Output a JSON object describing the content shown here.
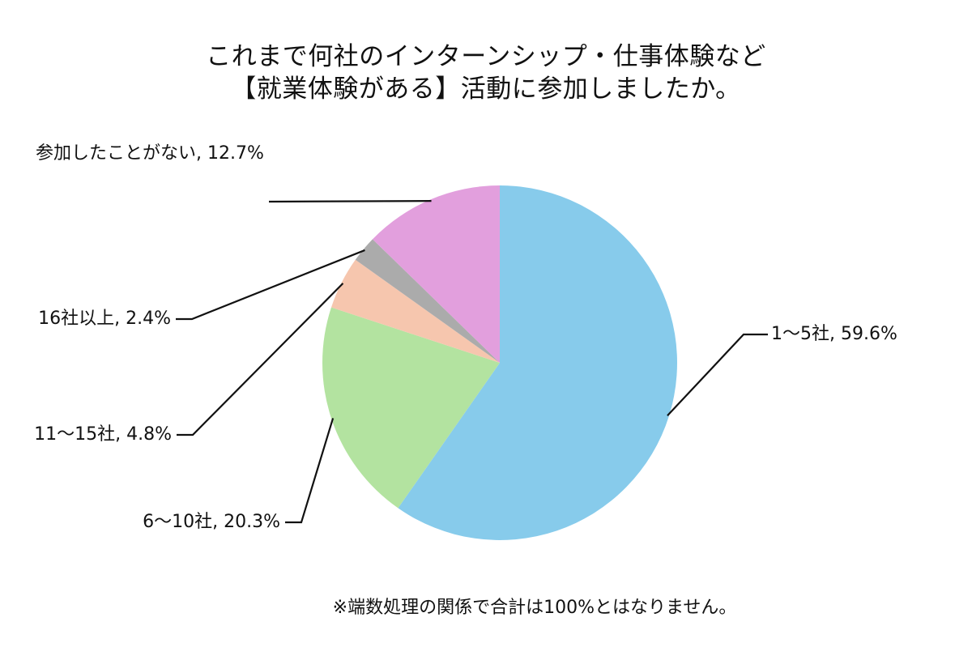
{
  "title_line1": "これまで何社のインターンシップ・仕事体験など",
  "title_line2": "【就業体験がある】活動に参加しましたか。",
  "note": "※端数処理の関係で合計は100%とはなりません。",
  "chart_data": {
    "type": "pie",
    "title": "これまで何社のインターンシップ・仕事体験など【就業体験がある】活動に参加しましたか。",
    "slices": [
      {
        "name": "1～5社",
        "value": 59.6,
        "label": "1～5社, 59.6%",
        "color": "#87CBEB"
      },
      {
        "name": "6～10社",
        "value": 20.3,
        "label": "6～10社, 20.3%",
        "color": "#B3E3A0"
      },
      {
        "name": "11～15社",
        "value": 4.8,
        "label": "11～15社, 4.8%",
        "color": "#F6C6AE"
      },
      {
        "name": "16社以上",
        "value": 2.4,
        "label": "16社以上, 2.4%",
        "color": "#ABABAB"
      },
      {
        "name": "参加したことがない",
        "value": 12.7,
        "label": "参加したことがない, 12.7%",
        "color": "#E29FDD"
      }
    ],
    "start_angle": "12 o'clock",
    "direction": "clockwise",
    "legend": "none (data labels with leader lines)"
  }
}
